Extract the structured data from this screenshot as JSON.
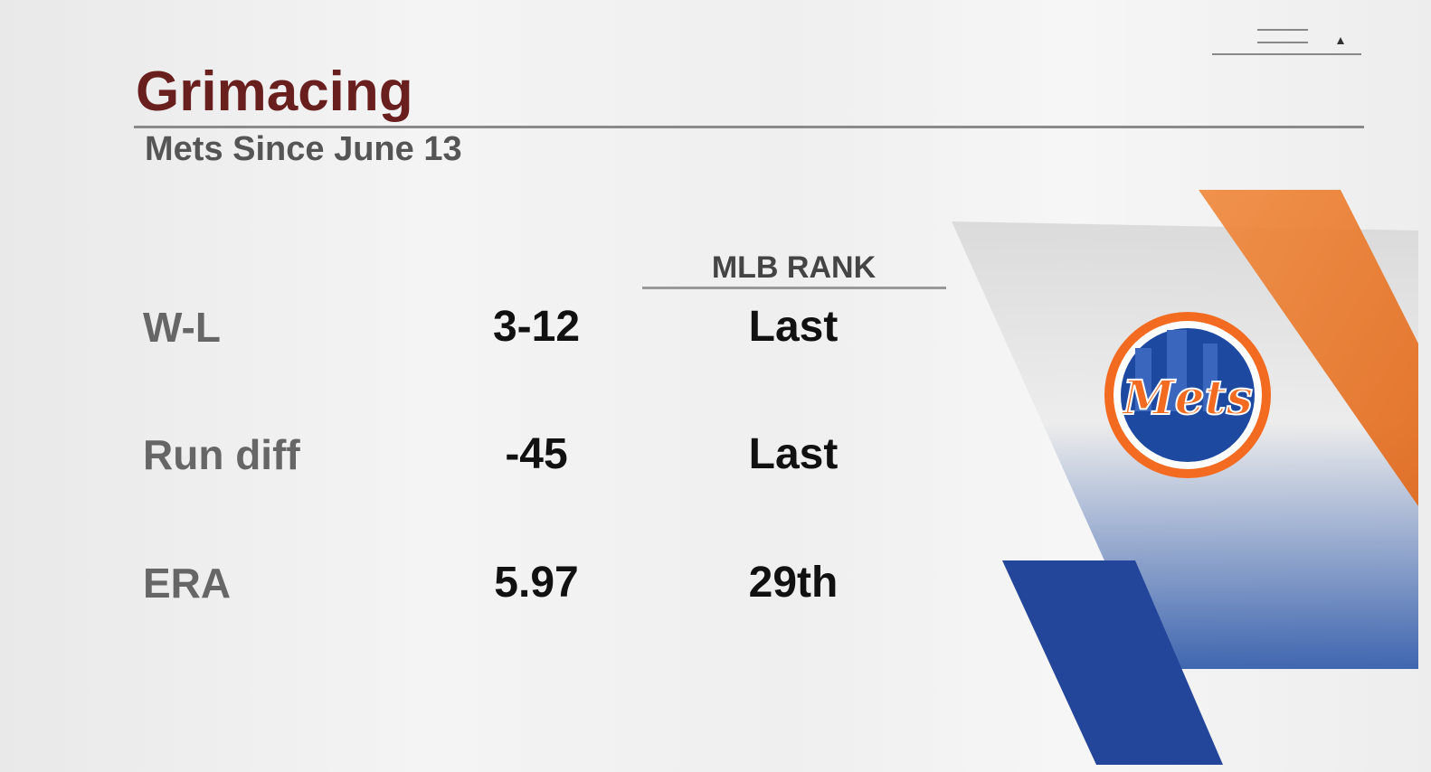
{
  "header": {
    "title": "Grimacing",
    "subtitle": "Mets Since June 13"
  },
  "table": {
    "columns": [
      "MLB RANK"
    ],
    "rows": [
      [
        "W-L",
        "3-12",
        "Last"
      ],
      [
        "Run diff",
        "-45",
        "Last"
      ],
      [
        "ERA",
        "5.97",
        "29th"
      ]
    ]
  },
  "logo": {
    "text": "Mets"
  }
}
